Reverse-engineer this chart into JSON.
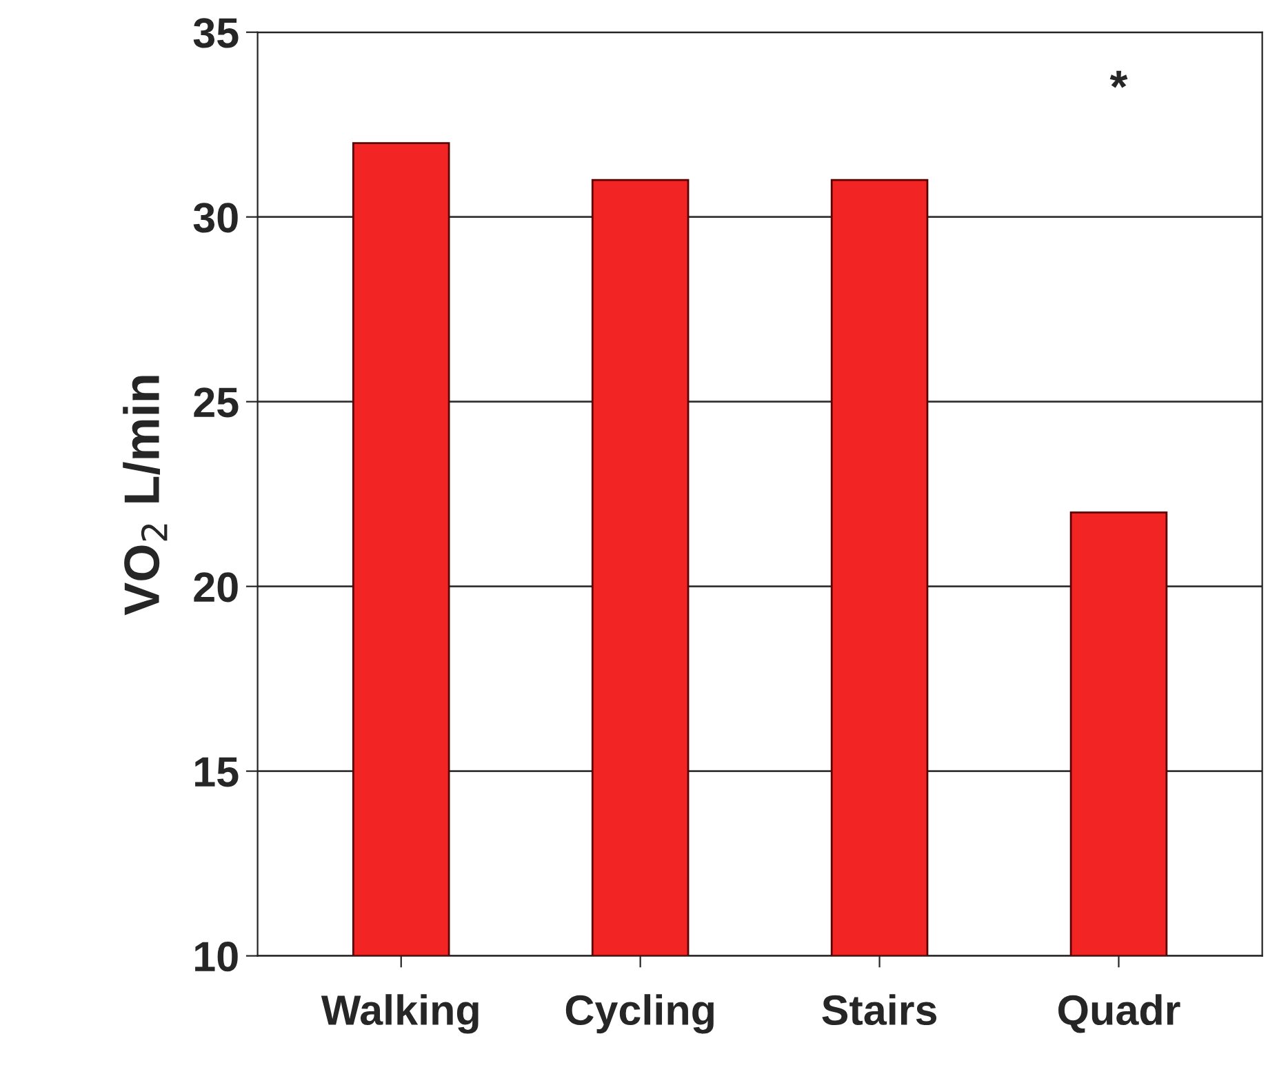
{
  "chart_data": {
    "type": "bar",
    "ylabel": "VO$_{2}$ L/min",
    "categories": [
      "Walking",
      "Cycling",
      "Stairs",
      "Quadr"
    ],
    "values": [
      32,
      31,
      31,
      22
    ],
    "color": "#f22424",
    "ylim": [
      10,
      35
    ],
    "yticks": [
      10,
      15,
      20,
      25,
      30,
      35
    ],
    "grid": "y",
    "annotations": [
      "*"
    ]
  }
}
